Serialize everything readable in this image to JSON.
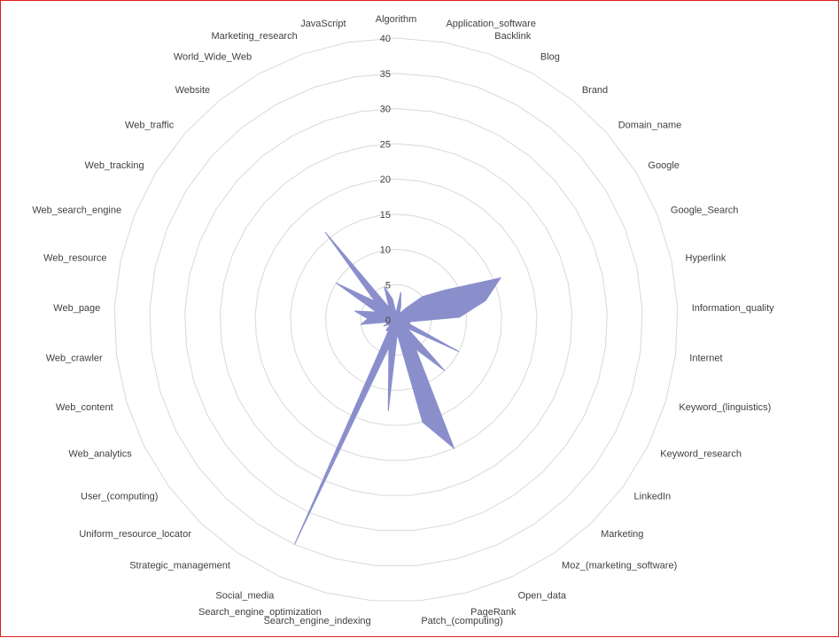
{
  "chart_data": {
    "type": "radar",
    "title": "",
    "rlim": [
      0,
      40
    ],
    "ticks": [
      "0",
      "5",
      "10",
      "15",
      "20",
      "25",
      "30",
      "35",
      "40"
    ],
    "grid": true,
    "legend": "none",
    "series_color": "#8a8fcc",
    "grid_color": "#d9d9d9",
    "categories": [
      "Algorithm",
      "Application_software",
      "Backlink",
      "Blog",
      "Brand",
      "Domain_name",
      "Google",
      "Google_Search",
      "Hyperlink",
      "Information_quality",
      "Internet",
      "Keyword_(linguistics)",
      "Keyword_research",
      "LinkedIn",
      "Marketing",
      "Moz_(marketing_software)",
      "Open_data",
      "PageRank",
      "Patch_(computing)",
      "Search_engine_indexing",
      "Search_engine_optimization",
      "Social_media",
      "Strategic_management",
      "Uniform_resource_locator",
      "User_(computing)",
      "Web_analytics",
      "Web_content",
      "Web_crawler",
      "Web_page",
      "Web_resource",
      "Web_search_engine",
      "Web_tracking",
      "Web_traffic",
      "Website",
      "World_Wide_Web",
      "Marketing_research",
      "JavaScript"
    ],
    "series": [
      {
        "values": [
          1,
          4,
          2,
          1,
          2,
          5,
          8,
          16,
          13,
          9,
          2,
          2,
          10,
          2,
          10,
          5,
          20,
          15,
          2,
          13,
          4,
          35,
          2,
          2,
          1,
          2,
          1,
          5,
          4,
          6,
          3,
          10,
          4,
          16,
          2,
          5,
          3
        ]
      }
    ]
  }
}
